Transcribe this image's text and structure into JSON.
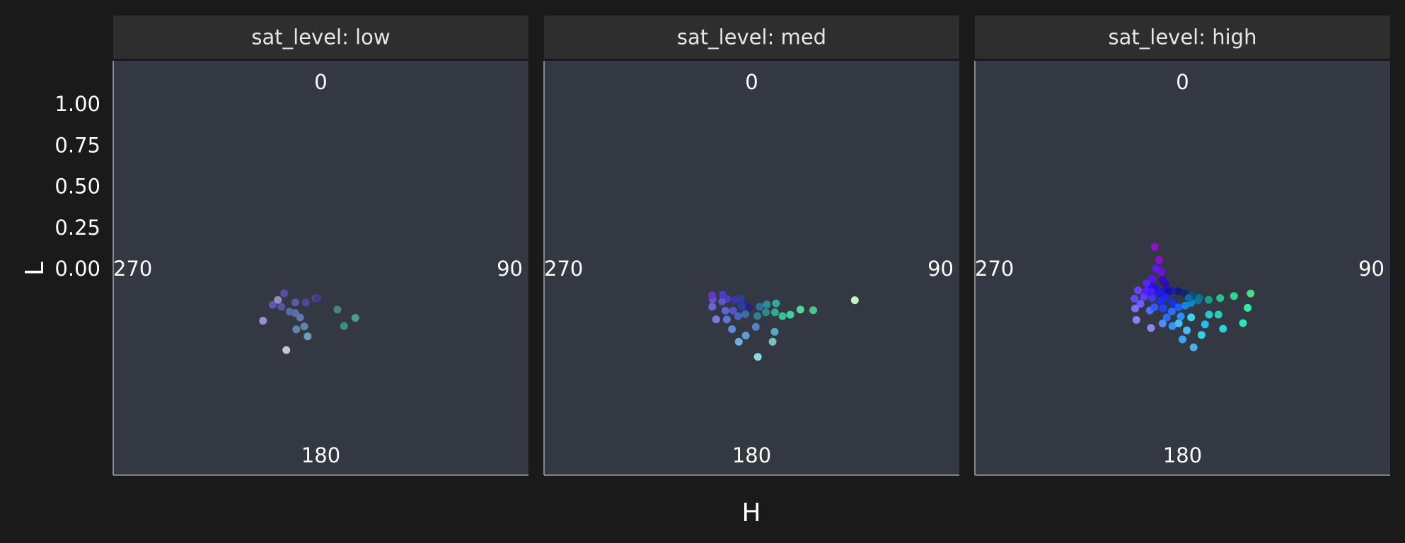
{
  "chart_data": {
    "type": "scatter",
    "subtype": "polar",
    "xlabel": "H",
    "ylabel": "L",
    "y_ticks": [
      "0.00",
      "0.25",
      "0.50",
      "0.75",
      "1.00"
    ],
    "ylim": [
      0,
      1.25
    ],
    "angle_axis": {
      "ticks": [
        "0",
        "90",
        "180",
        "270"
      ],
      "range_deg": [
        0,
        360
      ],
      "zero_at": "top",
      "direction": "clockwise"
    },
    "facet_variable": "sat_level",
    "grid": false,
    "panel_background": "#343842",
    "page_background": "#1a1a1a",
    "strip_background": "#2e2e2e",
    "facets": [
      {
        "label": "sat_level: low",
        "points": [
          {
            "h": 203,
            "l": 0.5,
            "color": "#c8c3e3"
          },
          {
            "h": 191,
            "l": 0.39,
            "color": "#6e9fb8"
          },
          {
            "h": 196,
            "l": 0.34,
            "color": "#5d88a8"
          },
          {
            "h": 202,
            "l": 0.37,
            "color": "#5f86b0"
          },
          {
            "h": 203,
            "l": 0.3,
            "color": "#6673b4"
          },
          {
            "h": 210,
            "l": 0.29,
            "color": "#5b70a7"
          },
          {
            "h": 216,
            "l": 0.3,
            "color": "#5b68a8"
          },
          {
            "h": 226,
            "l": 0.31,
            "color": "#5a55a2"
          },
          {
            "h": 228,
            "l": 0.44,
            "color": "#9a90cc"
          },
          {
            "h": 233,
            "l": 0.34,
            "color": "#5d58ac"
          },
          {
            "h": 234,
            "l": 0.3,
            "color": "#8f8cc0"
          },
          {
            "h": 217,
            "l": 0.24,
            "color": "#5b5aa3"
          },
          {
            "h": 204,
            "l": 0.21,
            "color": "#4d4b97"
          },
          {
            "h": 236,
            "l": 0.25,
            "color": "#5a4ba8"
          },
          {
            "h": 190,
            "l": 0.17,
            "color": "#4d4b95"
          },
          {
            "h": 186,
            "l": 0.17,
            "color": "#3f3f7f"
          },
          {
            "h": 158,
            "l": 0.25,
            "color": "#43867c"
          },
          {
            "h": 145,
            "l": 0.34,
            "color": "#4e9e86"
          },
          {
            "h": 158,
            "l": 0.35,
            "color": "#3f8d88"
          }
        ]
      },
      {
        "label": "sat_level: med",
        "points": [
          {
            "h": 215,
            "l": 0.35,
            "color": "#7a7ce0"
          },
          {
            "h": 226,
            "l": 0.31,
            "color": "#6a66d5"
          },
          {
            "h": 232,
            "l": 0.28,
            "color": "#6650cf"
          },
          {
            "h": 236,
            "l": 0.27,
            "color": "#5d3bc6"
          },
          {
            "h": 219,
            "l": 0.22,
            "color": "#4c3bbc"
          },
          {
            "h": 208,
            "l": 0.2,
            "color": "#3b33b0"
          },
          {
            "h": 190,
            "l": 0.21,
            "color": "#2b2898"
          },
          {
            "h": 183,
            "l": 0.22,
            "color": "#262674"
          },
          {
            "h": 204,
            "l": 0.26,
            "color": "#4c55c8"
          },
          {
            "h": 196,
            "l": 0.28,
            "color": "#4662c2"
          },
          {
            "h": 188,
            "l": 0.26,
            "color": "#3c6db0"
          },
          {
            "h": 173,
            "l": 0.27,
            "color": "#2e7c98"
          },
          {
            "h": 162,
            "l": 0.26,
            "color": "#2c8a8e"
          },
          {
            "h": 152,
            "l": 0.28,
            "color": "#2ea88e"
          },
          {
            "h": 147,
            "l": 0.32,
            "color": "#34c09a"
          },
          {
            "h": 140,
            "l": 0.34,
            "color": "#3ed29a"
          },
          {
            "h": 130,
            "l": 0.36,
            "color": "#4ed99a"
          },
          {
            "h": 124,
            "l": 0.42,
            "color": "#48c888"
          },
          {
            "h": 107,
            "l": 0.61,
            "color": "#c5f2c0"
          },
          {
            "h": 176,
            "l": 0.33,
            "color": "#4a88c0"
          },
          {
            "h": 185,
            "l": 0.38,
            "color": "#5aa0d6"
          },
          {
            "h": 190,
            "l": 0.42,
            "color": "#6ab0e0"
          },
          {
            "h": 176,
            "l": 0.5,
            "color": "#8fd8e0"
          },
          {
            "h": 164,
            "l": 0.43,
            "color": "#7ac2c0"
          },
          {
            "h": 160,
            "l": 0.38,
            "color": "#56a8c0"
          },
          {
            "h": 198,
            "l": 0.36,
            "color": "#5f8ad8"
          },
          {
            "h": 206,
            "l": 0.32,
            "color": "#5a76d8"
          },
          {
            "h": 212,
            "l": 0.28,
            "color": "#5a64d2"
          },
          {
            "h": 222,
            "l": 0.25,
            "color": "#5a56cc"
          },
          {
            "h": 228,
            "l": 0.22,
            "color": "#4a3cc0"
          },
          {
            "h": 195,
            "l": 0.22,
            "color": "#2c3aa8"
          },
          {
            "h": 200,
            "l": 0.18,
            "color": "#2f3d9a"
          },
          {
            "h": 168,
            "l": 0.22,
            "color": "#2c6f9a"
          },
          {
            "h": 157,
            "l": 0.22,
            "color": "#2e8c94"
          },
          {
            "h": 145,
            "l": 0.24,
            "color": "#2fa9a0"
          }
        ]
      },
      {
        "label": "sat_level: high",
        "points": [
          {
            "h": 208,
            "l": 0.38,
            "color": "#8d84ff"
          },
          {
            "h": 222,
            "l": 0.39,
            "color": "#8880ff"
          },
          {
            "h": 230,
            "l": 0.31,
            "color": "#6a5cff"
          },
          {
            "h": 234,
            "l": 0.27,
            "color": "#5e3cff"
          },
          {
            "h": 238,
            "l": 0.24,
            "color": "#5a1fff"
          },
          {
            "h": 240,
            "l": 0.2,
            "color": "#3010e6"
          },
          {
            "h": 233,
            "l": 0.19,
            "color": "#2a12d8"
          },
          {
            "h": 220,
            "l": 0.17,
            "color": "#1f16c8"
          },
          {
            "h": 205,
            "l": 0.14,
            "color": "#1420b8"
          },
          {
            "h": 190,
            "l": 0.13,
            "color": "#121a8a"
          },
          {
            "h": 174,
            "l": 0.14,
            "color": "#0c2a6a"
          },
          {
            "h": 160,
            "l": 0.16,
            "color": "#0a4d78"
          },
          {
            "h": 150,
            "l": 0.19,
            "color": "#0a6e80"
          },
          {
            "h": 140,
            "l": 0.23,
            "color": "#12a08c"
          },
          {
            "h": 128,
            "l": 0.27,
            "color": "#22c68a"
          },
          {
            "h": 118,
            "l": 0.33,
            "color": "#2ad890"
          },
          {
            "h": 110,
            "l": 0.41,
            "color": "#46e080"
          },
          {
            "h": 121,
            "l": 0.43,
            "color": "#2ef0a0"
          },
          {
            "h": 132,
            "l": 0.46,
            "color": "#28e8c0"
          },
          {
            "h": 146,
            "l": 0.41,
            "color": "#22d8e0"
          },
          {
            "h": 158,
            "l": 0.34,
            "color": "#1fbcec"
          },
          {
            "h": 172,
            "l": 0.45,
            "color": "#46b0f0"
          },
          {
            "h": 180,
            "l": 0.4,
            "color": "#3aa8f6"
          },
          {
            "h": 190,
            "l": 0.33,
            "color": "#3592ff"
          },
          {
            "h": 198,
            "l": 0.29,
            "color": "#2a6cff"
          },
          {
            "h": 206,
            "l": 0.25,
            "color": "#1a44ff"
          },
          {
            "h": 214,
            "l": 0.22,
            "color": "#1a2cff"
          },
          {
            "h": 222,
            "l": 0.19,
            "color": "#2018f0"
          },
          {
            "h": 226,
            "l": 0.24,
            "color": "#4434ff"
          },
          {
            "h": 218,
            "l": 0.3,
            "color": "#5070ff"
          },
          {
            "h": 200,
            "l": 0.33,
            "color": "#4a90ff"
          },
          {
            "h": 184,
            "l": 0.31,
            "color": "#3ec0ff"
          },
          {
            "h": 170,
            "l": 0.28,
            "color": "#30d8f4"
          },
          {
            "h": 196,
            "l": 0.2,
            "color": "#1830e8"
          },
          {
            "h": 186,
            "l": 0.22,
            "color": "#1160ff"
          },
          {
            "h": 176,
            "l": 0.21,
            "color": "#0e86e6"
          },
          {
            "h": 166,
            "l": 0.2,
            "color": "#0c88c0"
          },
          {
            "h": 212,
            "l": 0.15,
            "color": "#1810a8"
          },
          {
            "h": 228,
            "l": 0.13,
            "color": "#2410b4"
          },
          {
            "h": 240,
            "l": 0.13,
            "color": "#3808c8"
          },
          {
            "h": 262,
            "l": 0.12,
            "color": "#7010e0"
          },
          {
            "h": 290,
            "l": 0.14,
            "color": "#8e0cd8"
          },
          {
            "h": 308,
            "l": 0.2,
            "color": "#8c10cc"
          },
          {
            "h": 252,
            "l": 0.18,
            "color": "#5a12f0"
          },
          {
            "h": 270,
            "l": 0.15,
            "color": "#6018f0"
          },
          {
            "h": 244,
            "l": 0.28,
            "color": "#6a40ff"
          },
          {
            "h": 248,
            "l": 0.22,
            "color": "#5026f8"
          },
          {
            "h": 210,
            "l": 0.19,
            "color": "#1e28e0"
          },
          {
            "h": 216,
            "l": 0.27,
            "color": "#3058ff"
          },
          {
            "h": 176,
            "l": 0.35,
            "color": "#48b8ff"
          },
          {
            "h": 164,
            "l": 0.39,
            "color": "#36d0ee"
          },
          {
            "h": 150,
            "l": 0.3,
            "color": "#20cccc"
          },
          {
            "h": 142,
            "l": 0.33,
            "color": "#2ad0b4"
          },
          {
            "h": 182,
            "l": 0.27,
            "color": "#2690ff"
          },
          {
            "h": 194,
            "l": 0.25,
            "color": "#2a70ff"
          },
          {
            "h": 168,
            "l": 0.17,
            "color": "#0b6aa8"
          },
          {
            "h": 154,
            "l": 0.2,
            "color": "#0c7898"
          },
          {
            "h": 234,
            "l": 0.22,
            "color": "#3a22ff"
          },
          {
            "h": 230,
            "l": 0.35,
            "color": "#7a70ff"
          },
          {
            "h": 238,
            "l": 0.32,
            "color": "#6448ff"
          }
        ]
      }
    ]
  }
}
